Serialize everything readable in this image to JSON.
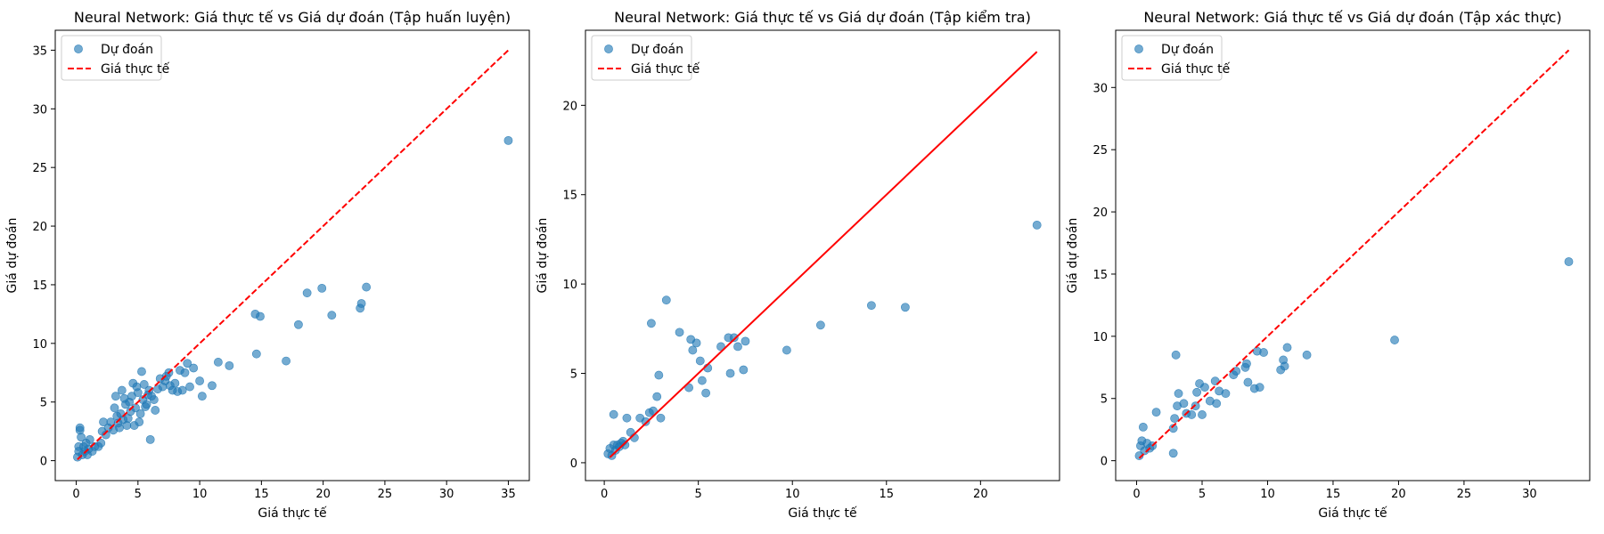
{
  "chart_data": [
    {
      "type": "scatter",
      "title": "Neural Network: Giá thực tế vs Giá dự đoán (Tập huấn luyện)",
      "xlabel": "Giá thực tế",
      "ylabel": "Giá dự đoán",
      "xlim": [
        -1.7,
        36.7
      ],
      "ylim": [
        -1.7,
        36.7
      ],
      "xticks": [
        0,
        5,
        10,
        15,
        20,
        25,
        30,
        35
      ],
      "yticks": [
        0,
        5,
        10,
        15,
        20,
        25,
        30,
        35
      ],
      "legend": {
        "position": "top-left",
        "entries": [
          "Dự đoán",
          "Giá thực tế"
        ]
      },
      "reference_line": {
        "name": "Giá thực tế",
        "from": [
          0.1,
          0.1
        ],
        "to": [
          35,
          35
        ],
        "style": "dashed",
        "color": "#ff0000"
      },
      "series": [
        {
          "name": "Dự đoán",
          "color": "#1f77b4",
          "points": [
            [
              0.1,
              0.3
            ],
            [
              0.2,
              0.8
            ],
            [
              0.2,
              1.2
            ],
            [
              0.3,
              2.6
            ],
            [
              0.3,
              2.8
            ],
            [
              0.4,
              2.0
            ],
            [
              0.5,
              0.5
            ],
            [
              0.6,
              1.2
            ],
            [
              0.7,
              0.8
            ],
            [
              0.8,
              1.5
            ],
            [
              0.9,
              0.5
            ],
            [
              1.0,
              1.0
            ],
            [
              1.1,
              1.8
            ],
            [
              1.3,
              0.8
            ],
            [
              1.5,
              1.2
            ],
            [
              1.8,
              1.2
            ],
            [
              2.0,
              1.5
            ],
            [
              2.1,
              2.5
            ],
            [
              2.2,
              3.3
            ],
            [
              2.4,
              2.2
            ],
            [
              2.6,
              2.8
            ],
            [
              2.8,
              3.3
            ],
            [
              3.0,
              2.6
            ],
            [
              3.1,
              4.5
            ],
            [
              3.2,
              5.5
            ],
            [
              3.3,
              3.8
            ],
            [
              3.4,
              3.2
            ],
            [
              3.5,
              2.8
            ],
            [
              3.6,
              4.0
            ],
            [
              3.7,
              6.0
            ],
            [
              3.8,
              3.5
            ],
            [
              3.9,
              5.3
            ],
            [
              4.0,
              4.8
            ],
            [
              4.1,
              3.0
            ],
            [
              4.2,
              3.6
            ],
            [
              4.3,
              5.0
            ],
            [
              4.4,
              4.2
            ],
            [
              4.5,
              5.5
            ],
            [
              4.6,
              6.6
            ],
            [
              4.7,
              3.0
            ],
            [
              4.8,
              4.5
            ],
            [
              4.9,
              6.3
            ],
            [
              5.0,
              5.8
            ],
            [
              5.1,
              3.3
            ],
            [
              5.2,
              4.0
            ],
            [
              5.3,
              7.6
            ],
            [
              5.4,
              5.2
            ],
            [
              5.5,
              6.5
            ],
            [
              5.6,
              4.6
            ],
            [
              5.7,
              4.8
            ],
            [
              5.8,
              5.6
            ],
            [
              5.9,
              6.0
            ],
            [
              6.0,
              1.8
            ],
            [
              6.1,
              5.5
            ],
            [
              6.3,
              5.2
            ],
            [
              6.4,
              4.3
            ],
            [
              6.6,
              6.1
            ],
            [
              6.8,
              7.0
            ],
            [
              7.0,
              6.3
            ],
            [
              7.2,
              6.8
            ],
            [
              7.3,
              7.2
            ],
            [
              7.5,
              7.5
            ],
            [
              7.6,
              6.4
            ],
            [
              7.8,
              6.0
            ],
            [
              8.0,
              6.6
            ],
            [
              8.2,
              5.9
            ],
            [
              8.4,
              7.7
            ],
            [
              8.6,
              6.0
            ],
            [
              8.8,
              7.5
            ],
            [
              9.0,
              8.3
            ],
            [
              9.2,
              6.3
            ],
            [
              9.5,
              7.9
            ],
            [
              10.0,
              6.8
            ],
            [
              10.2,
              5.5
            ],
            [
              11.0,
              6.4
            ],
            [
              11.5,
              8.4
            ],
            [
              12.4,
              8.1
            ],
            [
              14.5,
              12.5
            ],
            [
              14.6,
              9.1
            ],
            [
              14.9,
              12.3
            ],
            [
              17.0,
              8.5
            ],
            [
              18.0,
              11.6
            ],
            [
              18.7,
              14.3
            ],
            [
              19.9,
              14.7
            ],
            [
              20.7,
              12.4
            ],
            [
              23.0,
              13.0
            ],
            [
              23.1,
              13.4
            ],
            [
              23.5,
              14.8
            ],
            [
              35.0,
              27.3
            ]
          ]
        }
      ]
    },
    {
      "type": "scatter",
      "title": "Neural Network: Giá thực tế vs Giá dự đoán (Tập kiểm tra)",
      "xlabel": "Giá thực tế",
      "ylabel": "Giá dự đoán",
      "xlim": [
        -1.0,
        24.2
      ],
      "ylim": [
        -1.0,
        24.2
      ],
      "xticks": [
        0,
        5,
        10,
        15,
        20
      ],
      "yticks": [
        0,
        5,
        10,
        15,
        20
      ],
      "legend": {
        "position": "top-left",
        "entries": [
          "Dự đoán",
          "Giá thực tế"
        ]
      },
      "reference_line": {
        "name": "Giá thực tế",
        "from": [
          0.3,
          0.3
        ],
        "to": [
          23.0,
          23.0
        ],
        "style": "solid",
        "color": "#ff0000"
      },
      "series": [
        {
          "name": "Dự đoán",
          "color": "#1f77b4",
          "points": [
            [
              0.2,
              0.5
            ],
            [
              0.3,
              0.8
            ],
            [
              0.4,
              0.4
            ],
            [
              0.5,
              1.0
            ],
            [
              0.5,
              2.7
            ],
            [
              0.6,
              0.7
            ],
            [
              0.7,
              1.0
            ],
            [
              0.8,
              0.9
            ],
            [
              0.9,
              1.1
            ],
            [
              1.0,
              1.2
            ],
            [
              1.1,
              1.0
            ],
            [
              1.2,
              2.5
            ],
            [
              1.4,
              1.7
            ],
            [
              1.6,
              1.4
            ],
            [
              1.9,
              2.5
            ],
            [
              2.2,
              2.3
            ],
            [
              2.4,
              2.8
            ],
            [
              2.5,
              7.8
            ],
            [
              2.6,
              2.9
            ],
            [
              2.8,
              3.7
            ],
            [
              2.9,
              4.9
            ],
            [
              3.0,
              2.5
            ],
            [
              3.3,
              9.1
            ],
            [
              4.0,
              7.3
            ],
            [
              4.5,
              4.2
            ],
            [
              4.6,
              6.9
            ],
            [
              4.7,
              6.3
            ],
            [
              4.9,
              6.7
            ],
            [
              5.1,
              5.7
            ],
            [
              5.2,
              4.6
            ],
            [
              5.4,
              3.9
            ],
            [
              5.5,
              5.3
            ],
            [
              6.2,
              6.5
            ],
            [
              6.6,
              7.0
            ],
            [
              6.7,
              5.0
            ],
            [
              6.9,
              7.0
            ],
            [
              7.1,
              6.5
            ],
            [
              7.4,
              5.2
            ],
            [
              7.5,
              6.8
            ],
            [
              9.7,
              6.3
            ],
            [
              11.5,
              7.7
            ],
            [
              14.2,
              8.8
            ],
            [
              16.0,
              8.7
            ],
            [
              23.0,
              13.3
            ]
          ]
        }
      ]
    },
    {
      "type": "scatter",
      "title": "Neural Network: Giá thực tế vs Giá dự đoán (Tập xác thực)",
      "xlabel": "Giá thực tế",
      "ylabel": "Giá dự đoán",
      "xlim": [
        -1.6,
        34.6
      ],
      "ylim": [
        -1.6,
        34.6
      ],
      "xticks": [
        0,
        5,
        10,
        15,
        20,
        25,
        30
      ],
      "yticks": [
        0,
        5,
        10,
        15,
        20,
        25,
        30
      ],
      "legend": {
        "position": "top-left",
        "entries": [
          "Dự đoán",
          "Giá thực tế"
        ]
      },
      "reference_line": {
        "name": "Giá thực tế",
        "from": [
          0.2,
          0.2
        ],
        "to": [
          33.0,
          33.0
        ],
        "style": "dashed",
        "color": "#ff0000"
      },
      "series": [
        {
          "name": "Dự đoán",
          "color": "#1f77b4",
          "points": [
            [
              0.2,
              0.4
            ],
            [
              0.3,
              1.2
            ],
            [
              0.4,
              1.6
            ],
            [
              0.5,
              2.7
            ],
            [
              0.6,
              0.8
            ],
            [
              0.8,
              1.4
            ],
            [
              1.0,
              1.0
            ],
            [
              1.2,
              1.2
            ],
            [
              1.5,
              3.9
            ],
            [
              2.8,
              0.6
            ],
            [
              2.8,
              2.6
            ],
            [
              2.9,
              3.4
            ],
            [
              3.0,
              8.5
            ],
            [
              3.1,
              4.4
            ],
            [
              3.2,
              5.4
            ],
            [
              3.6,
              4.6
            ],
            [
              3.8,
              3.8
            ],
            [
              4.2,
              3.7
            ],
            [
              4.5,
              4.4
            ],
            [
              4.6,
              5.5
            ],
            [
              4.8,
              6.2
            ],
            [
              5.0,
              3.7
            ],
            [
              5.2,
              5.9
            ],
            [
              5.6,
              4.8
            ],
            [
              6.0,
              6.4
            ],
            [
              6.1,
              4.6
            ],
            [
              6.3,
              5.6
            ],
            [
              6.8,
              5.4
            ],
            [
              7.4,
              6.9
            ],
            [
              7.6,
              7.2
            ],
            [
              8.3,
              7.5
            ],
            [
              8.4,
              7.8
            ],
            [
              8.5,
              6.3
            ],
            [
              9.0,
              5.8
            ],
            [
              9.2,
              8.8
            ],
            [
              9.4,
              5.9
            ],
            [
              9.7,
              8.7
            ],
            [
              11.0,
              7.3
            ],
            [
              11.2,
              8.1
            ],
            [
              11.3,
              7.6
            ],
            [
              11.5,
              9.1
            ],
            [
              13.0,
              8.5
            ],
            [
              19.7,
              9.7
            ],
            [
              33.0,
              16.0
            ]
          ]
        }
      ]
    }
  ]
}
